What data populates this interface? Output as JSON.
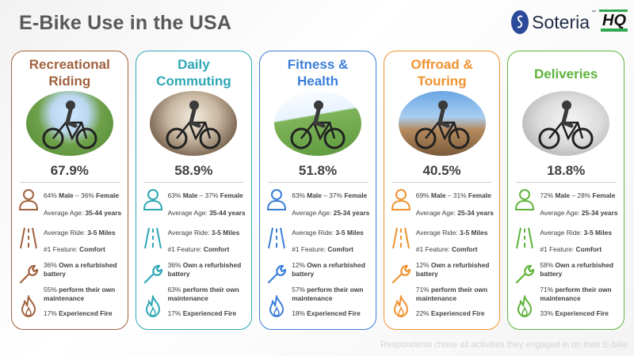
{
  "title": "E-Bike Use in the USA",
  "logos": {
    "soteria": "Soteria",
    "soteria_tm": "™",
    "hq": "HQ"
  },
  "footnote": "Respondents chose all activities they engaged in on their E-bike",
  "cards": [
    {
      "title_line1": "Recreational",
      "title_line2": "Riding",
      "color": "#a0613e",
      "percent": "67.9%",
      "gender_a": "64% ",
      "gender_b": "Male",
      "gender_c": " – 36% ",
      "gender_d": "Female",
      "age_a": "Average Age: ",
      "age_b": "35-44 years",
      "ride_a": "Average Ride: ",
      "ride_b": "3-5 Miles",
      "feature_a": "#1 Feature: ",
      "feature_b": "Comfort",
      "battery_a": "36% ",
      "battery_b": "Own a refurbished battery",
      "maint_a": "55% ",
      "maint_b": "perform their own maintenance",
      "fire_a": "17% ",
      "fire_b": "Experienced Fire"
    },
    {
      "title_line1": "Daily",
      "title_line2": "Commuting",
      "color": "#2ea7b5",
      "percent": "58.9%",
      "gender_a": "63% ",
      "gender_b": "Male",
      "gender_c": " – 37% ",
      "gender_d": "Female",
      "age_a": "Average Age: ",
      "age_b": "35-44 years",
      "ride_a": "Average Ride: ",
      "ride_b": "3-5 Miles",
      "feature_a": "#1 Feature: ",
      "feature_b": "Comfort",
      "battery_a": "36% ",
      "battery_b": "Own a refurbished battery",
      "maint_a": "63% ",
      "maint_b": "perform their own maintenance",
      "fire_a": "17% ",
      "fire_b": "Experienced Fire"
    },
    {
      "title_line1": "Fitness &",
      "title_line2": "Health",
      "color": "#3a7ed8",
      "percent": "51.8%",
      "gender_a": "63% ",
      "gender_b": "Male",
      "gender_c": " – 37% ",
      "gender_d": "Female",
      "age_a": "Average Age: ",
      "age_b": "25-34 years",
      "ride_a": "Average Ride: ",
      "ride_b": "3-5 Miles",
      "feature_a": "#1 Feature: ",
      "feature_b": "Comfort",
      "battery_a": "12% ",
      "battery_b": "Own a refurbished battery",
      "maint_a": "57% ",
      "maint_b": "perform their own maintenance",
      "fire_a": "18% ",
      "fire_b": "Experienced Fire"
    },
    {
      "title_line1": "Offroad &",
      "title_line2": "Touring",
      "color": "#f0922f",
      "percent": "40.5%",
      "gender_a": "69% ",
      "gender_b": "Male",
      "gender_c": " – 31% ",
      "gender_d": "Female",
      "age_a": "Average Age: ",
      "age_b": "25-34 years",
      "ride_a": "Average Ride: ",
      "ride_b": "3-5 Miles",
      "feature_a": "#1 Feature: ",
      "feature_b": "Comfort",
      "battery_a": "12% ",
      "battery_b": "Own a refurbished battery",
      "maint_a": "71% ",
      "maint_b": "perform their own maintenance",
      "fire_a": "22% ",
      "fire_b": "Experienced Fire"
    },
    {
      "title_line1": "Deliveries",
      "title_line2": "",
      "color": "#5fb33c",
      "percent": "18.8%",
      "gender_a": "72% ",
      "gender_b": "Male",
      "gender_c": " – 28% ",
      "gender_d": "Female",
      "age_a": "Average Age: ",
      "age_b": "25-34 years",
      "ride_a": "Average Ride: ",
      "ride_b": "3-5 Miles",
      "feature_a": "#1 Feature: ",
      "feature_b": "Comfort",
      "battery_a": "58% ",
      "battery_b": "Own a refurbished battery",
      "maint_a": "71% ",
      "maint_b": "perform their own maintenance",
      "fire_a": "33% ",
      "fire_b": "Experienced Fire"
    }
  ]
}
